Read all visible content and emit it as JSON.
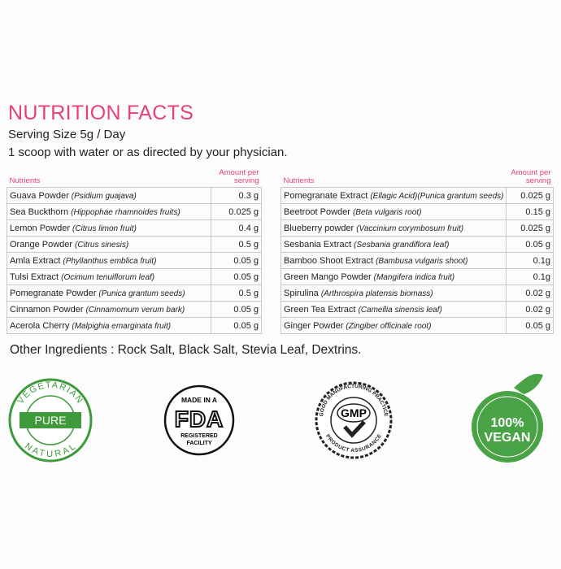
{
  "header": {
    "title": "NUTRITION FACTS",
    "serving_size": "Serving Size 5g / Day",
    "directions": "1 scoop with water or as directed by your physician."
  },
  "tables": [
    {
      "columns": [
        "Nutrients",
        "Amount per serving"
      ],
      "rows": [
        {
          "name": "Guava Powder",
          "latin": "(Psidium guajava)",
          "amount": "0.3 g"
        },
        {
          "name": "Sea Buckthorn",
          "latin": "(Hippophae rhamnoides fruits)",
          "amount": "0.025 g"
        },
        {
          "name": "Lemon Powder",
          "latin": "(Citrus limon fruit)",
          "amount": "0.4 g"
        },
        {
          "name": "Orange Powder",
          "latin": "(Citrus sinesis)",
          "amount": "0.5 g"
        },
        {
          "name": "Amla Extract",
          "latin": "(Phyllanthus emblica fruit)",
          "amount": "0.05 g"
        },
        {
          "name": "Tulsi Extract",
          "latin": "(Ocimum tenuiflorum leaf)",
          "amount": "0.05 g"
        },
        {
          "name": "Pomegranate Powder",
          "latin": "(Punica grantum seeds)",
          "amount": "0.5 g"
        },
        {
          "name": "Cinnamon Powder",
          "latin": "(Cinnamomum verum bark)",
          "amount": "0.05 g"
        },
        {
          "name": "Acerola Cherry",
          "latin": "(Malpighia emarginata fruit)",
          "amount": "0.05 g"
        }
      ]
    },
    {
      "columns": [
        "Nutrients",
        "Amount per serving"
      ],
      "rows": [
        {
          "name": "Pomegranate Extract",
          "latin": "(Ellagic Acid)(Punica grantum seeds)",
          "amount": "0.025 g"
        },
        {
          "name": "Beetroot Powder",
          "latin": "(Beta vulgaris root)",
          "amount": "0.15 g"
        },
        {
          "name": "Blueberry powder",
          "latin": "(Vaccinium corymbosum fruit)",
          "amount": "0.025 g"
        },
        {
          "name": "Sesbania Extract",
          "latin": "(Sesbania grandiflora leaf)",
          "amount": "0.05 g"
        },
        {
          "name": "Bamboo Shoot Extract",
          "latin": "(Bambusa vulgaris shoot)",
          "amount": "0.1g"
        },
        {
          "name": "Green Mango Powder",
          "latin": "(Mangifera indica fruit)",
          "amount": "0.1g"
        },
        {
          "name": "Spirulina",
          "latin": "(Arthrospira platensis biomass)",
          "amount": "0.02 g"
        },
        {
          "name": "Green Tea Extract",
          "latin": "(Camellia sinensis leaf)",
          "amount": "0.02 g"
        },
        {
          "name": "Ginger Powder",
          "latin": "(Zingiber officinale root)",
          "amount": "0.05 g"
        }
      ]
    }
  ],
  "other_ingredients": "Other Ingredients : Rock Salt, Black Salt, Stevia Leaf, Dextrins.",
  "badges": {
    "vegetarian": {
      "top": "VEGETARIAN",
      "center": "PURE",
      "bottom": "NATURAL"
    },
    "fda": {
      "top": "MADE IN A",
      "center": "FDA",
      "line1": "REGISTERED",
      "line2": "FACILITY"
    },
    "gmp": {
      "top": "GOOD MANUFACTURING PRACTICE",
      "center": "GMP",
      "bottom": "PRODUCT ASSURANCE"
    },
    "vegan": {
      "line1": "100%",
      "line2": "VEGAN"
    }
  }
}
